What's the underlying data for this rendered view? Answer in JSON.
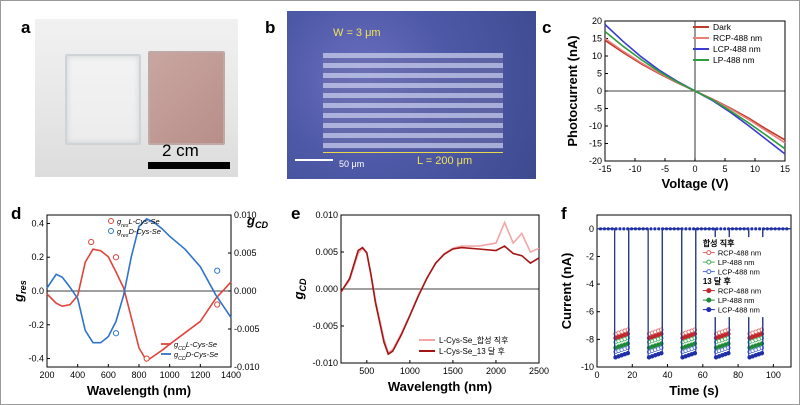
{
  "panels": {
    "a": {
      "letter": "a",
      "scale_label": "2 cm"
    },
    "b": {
      "letter": "b",
      "width_label": "W = 3 μm",
      "length_label": "L = 200 μm",
      "scale_label": "50 μm"
    },
    "c": {
      "letter": "c"
    },
    "d": {
      "letter": "d"
    },
    "e": {
      "letter": "e"
    },
    "f": {
      "letter": "f"
    }
  },
  "chart_data": [
    {
      "panel": "c",
      "type": "line",
      "xlabel": "Voltage (V)",
      "ylabel": "Photocurrent (nA)",
      "xlim": [
        -15,
        15
      ],
      "ylim": [
        -20,
        20
      ],
      "xticks": [
        -15,
        -10,
        -5,
        0,
        5,
        10,
        15
      ],
      "yticks": [
        -20,
        -15,
        -10,
        -5,
        0,
        5,
        10,
        15,
        20
      ],
      "x": [
        -15,
        -12,
        -9,
        -6,
        -3,
        0,
        3,
        6,
        9,
        12,
        15
      ],
      "series": [
        {
          "name": "Dark",
          "color": "#c0392b",
          "values": [
            14.5,
            11.0,
            7.8,
            5.0,
            2.4,
            0,
            -2.4,
            -5.0,
            -7.8,
            -11.0,
            -14.0
          ]
        },
        {
          "name": "RCP-488 nm",
          "color": "#e8807a",
          "values": [
            15.0,
            11.4,
            8.1,
            5.2,
            2.5,
            0,
            -2.5,
            -5.2,
            -8.2,
            -11.5,
            -14.8
          ]
        },
        {
          "name": "LCP-488 nm",
          "color": "#3b3bd1",
          "values": [
            19.0,
            14.2,
            9.8,
            6.0,
            2.8,
            0,
            -2.8,
            -6.2,
            -10.0,
            -14.0,
            -18.0
          ]
        },
        {
          "name": "LP-488 nm",
          "color": "#2e9e3e",
          "values": [
            17.0,
            12.8,
            9.0,
            5.6,
            2.6,
            0,
            -2.6,
            -5.8,
            -9.2,
            -12.8,
            -16.5
          ]
        }
      ]
    },
    {
      "panel": "d",
      "type": "line",
      "xlabel": "Wavelength (nm)",
      "ylabel": "g_res",
      "y2label": "g_CD",
      "xlim": [
        200,
        1400
      ],
      "ylim": [
        -0.45,
        0.45
      ],
      "y2lim": [
        -0.01,
        0.01
      ],
      "xticks": [
        200,
        400,
        600,
        800,
        1000,
        1200,
        1400
      ],
      "yticks": [
        -0.4,
        -0.2,
        0.0,
        0.2,
        0.4
      ],
      "y2ticks": [
        -0.01,
        -0.005,
        0.0,
        0.005,
        0.01
      ],
      "y2ticklabels": [
        "-0.010",
        "-0.005",
        "0.000",
        "0.005",
        "0.010"
      ],
      "legend_upper": [
        "g_res_L-Cys-Se",
        "g_res_D-Cys-Se"
      ],
      "legend_lower": [
        "g_CD_L-Cys-Se",
        "g_CD_D-Cys-Se"
      ],
      "series": [
        {
          "name": "g_CD_L-Cys-Se",
          "color": "#e0443a",
          "axis": "right",
          "x": [
            200,
            260,
            300,
            350,
            400,
            450,
            500,
            550,
            600,
            650,
            700,
            750,
            800,
            850,
            900,
            950,
            1000,
            1100,
            1200,
            1300,
            1400
          ],
          "values": [
            -0.0004,
            -0.0016,
            -0.002,
            -0.0018,
            -0.0006,
            0.0038,
            0.0055,
            0.0053,
            0.0045,
            0.0025,
            0.0004,
            -0.0035,
            -0.0075,
            -0.0092,
            -0.0085,
            -0.0078,
            -0.007,
            -0.0055,
            -0.004,
            -0.001,
            0.0012
          ]
        },
        {
          "name": "g_CD_D-Cys-Se",
          "color": "#2f74c9",
          "axis": "right",
          "x": [
            200,
            260,
            300,
            350,
            400,
            450,
            500,
            550,
            600,
            650,
            700,
            750,
            800,
            850,
            900,
            950,
            1000,
            1100,
            1200,
            1300,
            1400
          ],
          "values": [
            0.0004,
            0.0022,
            0.0018,
            0.0005,
            -0.001,
            -0.0052,
            -0.0068,
            -0.0068,
            -0.006,
            -0.004,
            -0.0005,
            0.0045,
            0.0085,
            0.0095,
            0.009,
            0.0082,
            0.0072,
            0.0055,
            0.0032,
            -0.0005,
            -0.0035
          ]
        },
        {
          "name": "g_res_L-Cys-Se",
          "color": "#e0443a",
          "axis": "left",
          "marker": "open-circle",
          "x": [
            488,
            650,
            850,
            1310
          ],
          "values": [
            0.29,
            0.2,
            -0.4,
            -0.08
          ]
        },
        {
          "name": "g_res_D-Cys-Se",
          "color": "#2f74c9",
          "axis": "left",
          "marker": "open-circle",
          "x": [
            650,
            1310
          ],
          "values": [
            -0.25,
            0.12
          ]
        }
      ]
    },
    {
      "panel": "e",
      "type": "line",
      "xlabel": "Wavelength (nm)",
      "ylabel": "g_CD",
      "xlim": [
        200,
        2500
      ],
      "ylim": [
        -0.01,
        0.01
      ],
      "xticks": [
        500,
        1000,
        1500,
        2000,
        2500
      ],
      "yticks": [
        -0.01,
        -0.005,
        0.0,
        0.005,
        0.01
      ],
      "yticklabels": [
        "-0.010",
        "-0.005",
        "0.000",
        "0.005",
        "0.010"
      ],
      "series": [
        {
          "name": "L-Cys-Se_합성 직후",
          "color": "#f2a6a6",
          "x": [
            200,
            300,
            400,
            450,
            500,
            550,
            600,
            700,
            750,
            800,
            900,
            1000,
            1100,
            1200,
            1300,
            1400,
            1500,
            1600,
            1800,
            2000,
            2100,
            2200,
            2300,
            2400,
            2500
          ],
          "values": [
            -0.0004,
            0.0012,
            0.0048,
            0.0055,
            0.0048,
            0.002,
            -0.0015,
            -0.0068,
            -0.0086,
            -0.0082,
            -0.006,
            -0.0035,
            -0.0008,
            0.0015,
            0.0035,
            0.0048,
            0.0055,
            0.0058,
            0.0058,
            0.0062,
            0.009,
            0.0062,
            0.0075,
            0.005,
            0.0055
          ]
        },
        {
          "name": "L-Cys-Se_13 달 후",
          "color": "#a31515",
          "x": [
            200,
            300,
            400,
            450,
            500,
            550,
            600,
            700,
            750,
            800,
            900,
            1000,
            1100,
            1200,
            1300,
            1400,
            1500,
            1600,
            1800,
            2000,
            2100,
            2200,
            2300,
            2400,
            2500
          ],
          "values": [
            -0.0004,
            0.0014,
            0.0052,
            0.0056,
            0.0049,
            0.0018,
            -0.0018,
            -0.0072,
            -0.0088,
            -0.0084,
            -0.0062,
            -0.0036,
            -0.0009,
            0.0015,
            0.0035,
            0.0047,
            0.0054,
            0.0056,
            0.0054,
            0.0052,
            0.0058,
            0.0048,
            0.0045,
            0.0035,
            0.0042
          ]
        }
      ]
    },
    {
      "panel": "f",
      "type": "line",
      "xlabel": "Time (s)",
      "ylabel": "Current (nA)",
      "xlim": [
        0,
        110
      ],
      "ylim": [
        -10,
        1
      ],
      "xticks": [
        0,
        20,
        40,
        60,
        80,
        100
      ],
      "yticks": [
        -10,
        -8,
        -6,
        -4,
        -2,
        0
      ],
      "legend_group1_title": "합성 직후",
      "legend_group2_title": "13 달 후",
      "pulse_starts": [
        10,
        29,
        48,
        67,
        86
      ],
      "pulse_width": 8,
      "baseline": 0,
      "series": [
        {
          "name": "RCP-488 nm",
          "group": "합성 직후",
          "color": "#e36060",
          "marker": "open-circle",
          "on_level": -7.6
        },
        {
          "name": "LP-488 nm",
          "group": "합성 직후",
          "color": "#45b05a",
          "marker": "open-circle",
          "on_level": -8.2
        },
        {
          "name": "LCP-488 nm",
          "group": "합성 직후",
          "color": "#4a6fd6",
          "marker": "open-circle",
          "on_level": -8.9
        },
        {
          "name": "RCP-488 nm",
          "group": "13 달 후",
          "color": "#c0282d",
          "marker": "filled-circle",
          "on_level": -7.9
        },
        {
          "name": "LP-488 nm",
          "group": "13 달 후",
          "color": "#1f8a35",
          "marker": "filled-circle",
          "on_level": -8.6
        },
        {
          "name": "LCP-488 nm",
          "group": "13 달 후",
          "color": "#1f2fa8",
          "marker": "filled-circle",
          "on_level": -9.3
        }
      ]
    }
  ]
}
